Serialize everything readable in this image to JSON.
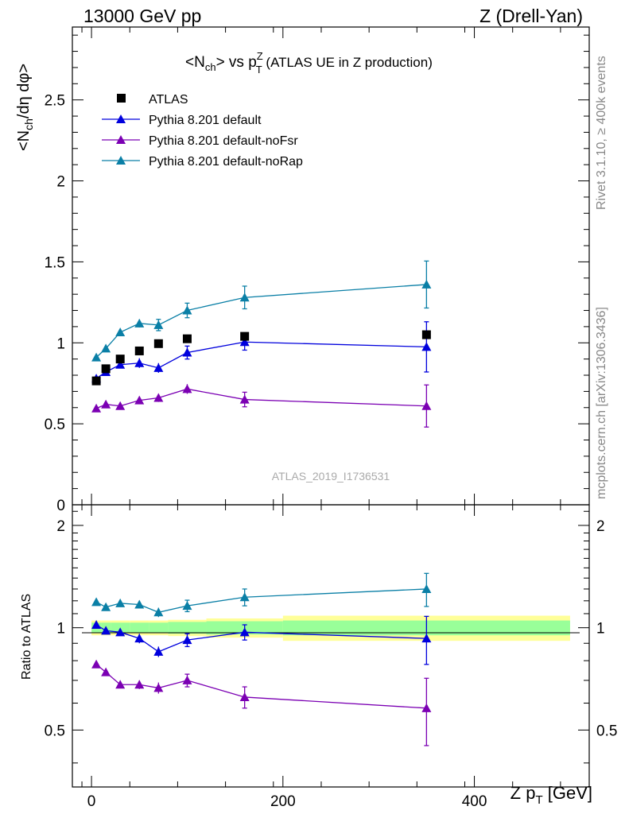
{
  "header": {
    "left": "13000 GeV pp",
    "right": "Z (Drell-Yan)"
  },
  "side_labels": {
    "rivet": "Rivet 3.1.10, ≥ 400k events",
    "mcplots": "mcplots.cern.ch [arXiv:1306.3436]"
  },
  "colors": {
    "atlas": "#000000",
    "default": "#0000dd",
    "noFsr": "#7b00b3",
    "noRap": "#0a7fa6",
    "band_inner": "#99ff99",
    "band_outer": "#ffff99"
  },
  "chart_data": [
    {
      "type": "scatter",
      "title": "<N_ch> vs p_T^Z (ATLAS UE in Z production)",
      "title_main": "<N",
      "title_sub1": "ch",
      "title_mid": "> vs p",
      "title_sup": "Z",
      "title_sub2": "T",
      "title_tail": " (ATLAS UE in Z production)",
      "ylabel": "<N_ch/dη dφ>",
      "ylabel_pre": "<N",
      "ylabel_sub": "ch",
      "ylabel_post": "/dη dφ>",
      "watermark": "ATLAS_2019_I1736531",
      "xlim": [
        -20,
        520
      ],
      "ylim": [
        0,
        2.95
      ],
      "yticks": [
        {
          "v": 0,
          "label": "0"
        },
        {
          "v": 0.5,
          "label": "0.5"
        },
        {
          "v": 1,
          "label": "1"
        },
        {
          "v": 1.5,
          "label": "1.5"
        },
        {
          "v": 2,
          "label": "2"
        },
        {
          "v": 2.5,
          "label": "2.5"
        }
      ],
      "legend_position": "top-left",
      "x": [
        5,
        15,
        30,
        50,
        70,
        100,
        160,
        350
      ],
      "series": [
        {
          "name": "ATLAS",
          "marker": "square",
          "line": false,
          "colorKey": "atlas",
          "values": [
            0.765,
            0.84,
            0.9,
            0.95,
            0.995,
            1.025,
            1.04,
            1.05
          ],
          "errors": [
            0.01,
            0.01,
            0.01,
            0.01,
            0.01,
            0.01,
            0.01,
            0.01
          ]
        },
        {
          "name": "Pythia 8.201 default",
          "marker": "triangle",
          "line": true,
          "colorKey": "default",
          "values": [
            0.78,
            0.82,
            0.865,
            0.875,
            0.845,
            0.94,
            1.005,
            0.975
          ],
          "errors": [
            0.01,
            0.02,
            0.02,
            0.03,
            0.03,
            0.04,
            0.05,
            0.155
          ]
        },
        {
          "name": "Pythia 8.201 default-noFsr",
          "marker": "triangle",
          "line": true,
          "colorKey": "noFsr",
          "values": [
            0.595,
            0.62,
            0.61,
            0.645,
            0.66,
            0.715,
            0.65,
            0.61
          ],
          "errors": [
            0.01,
            0.015,
            0.015,
            0.02,
            0.025,
            0.03,
            0.045,
            0.13
          ]
        },
        {
          "name": "Pythia 8.201 default-noRap",
          "marker": "triangle",
          "line": true,
          "colorKey": "noRap",
          "values": [
            0.91,
            0.965,
            1.065,
            1.12,
            1.11,
            1.2,
            1.28,
            1.36
          ],
          "errors": [
            0.01,
            0.015,
            0.02,
            0.025,
            0.035,
            0.045,
            0.07,
            0.145
          ]
        }
      ]
    },
    {
      "type": "scatter",
      "ylabel": "Ratio to ATLAS",
      "xlabel": "Z p_T [GeV]",
      "xlabel_pre": "Z p",
      "xlabel_sub": "T",
      "xlabel_post": " [GeV]",
      "xlim": [
        -20,
        520
      ],
      "ylim": [
        0.34,
        2.3
      ],
      "xticks": [
        {
          "v": 0,
          "label": "0"
        },
        {
          "v": 200,
          "label": "200"
        },
        {
          "v": 400,
          "label": "400"
        }
      ],
      "yticks": [
        {
          "v": 0.5,
          "label": "0.5"
        },
        {
          "v": 1,
          "label": "1"
        },
        {
          "v": 2,
          "label": "2"
        }
      ],
      "bins": [
        {
          "x0": 0,
          "x1": 10,
          "inner": 0.035,
          "outer": 0.05
        },
        {
          "x0": 10,
          "x1": 20,
          "inner": 0.035,
          "outer": 0.05
        },
        {
          "x0": 20,
          "x1": 40,
          "inner": 0.035,
          "outer": 0.05
        },
        {
          "x0": 40,
          "x1": 60,
          "inner": 0.035,
          "outer": 0.05
        },
        {
          "x0": 60,
          "x1": 80,
          "inner": 0.035,
          "outer": 0.05
        },
        {
          "x0": 80,
          "x1": 120,
          "inner": 0.04,
          "outer": 0.055
        },
        {
          "x0": 120,
          "x1": 200,
          "inner": 0.045,
          "outer": 0.065
        },
        {
          "x0": 200,
          "x1": 500,
          "inner": 0.05,
          "outer": 0.085
        }
      ],
      "x": [
        5,
        15,
        30,
        50,
        70,
        100,
        160,
        350
      ],
      "series": [
        {
          "name": "Pythia 8.201 default",
          "colorKey": "default",
          "values": [
            1.02,
            0.98,
            0.97,
            0.93,
            0.85,
            0.92,
            0.97,
            0.93
          ],
          "errors": [
            0.02,
            0.02,
            0.02,
            0.03,
            0.03,
            0.04,
            0.05,
            0.15
          ]
        },
        {
          "name": "Pythia 8.201 default-noFsr",
          "colorKey": "noFsr",
          "values": [
            0.78,
            0.74,
            0.68,
            0.68,
            0.665,
            0.7,
            0.625,
            0.58
          ],
          "errors": [
            0.01,
            0.015,
            0.015,
            0.02,
            0.025,
            0.03,
            0.045,
            0.13
          ]
        },
        {
          "name": "Pythia 8.201 default-noRap",
          "colorKey": "noRap",
          "values": [
            1.19,
            1.15,
            1.18,
            1.17,
            1.11,
            1.16,
            1.23,
            1.3
          ],
          "errors": [
            0.01,
            0.015,
            0.02,
            0.025,
            0.035,
            0.045,
            0.07,
            0.145
          ]
        }
      ]
    }
  ]
}
